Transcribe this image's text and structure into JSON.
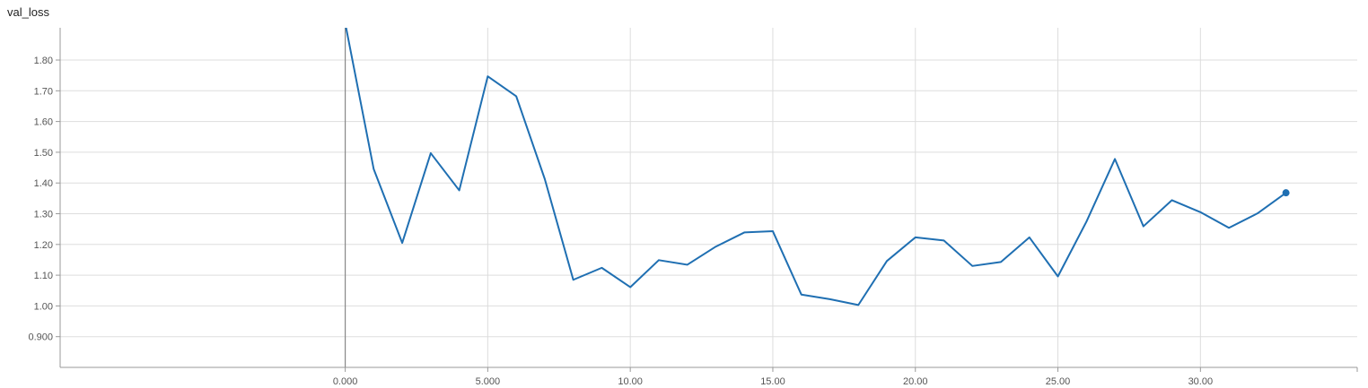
{
  "chart_data": {
    "type": "line",
    "title": "val_loss",
    "xlabel": "",
    "ylabel": "",
    "xlim": [
      -10,
      35.5
    ],
    "ylim": [
      0.8,
      1.905
    ],
    "x_ticks": [
      0,
      5,
      10,
      15,
      20,
      25,
      30
    ],
    "x_tick_labels": [
      "0.000",
      "5.000",
      "10.00",
      "15.00",
      "20.00",
      "25.00",
      "30.00"
    ],
    "y_ticks": [
      0.9,
      1.0,
      1.1,
      1.2,
      1.3,
      1.4,
      1.5,
      1.6,
      1.7,
      1.8
    ],
    "y_tick_labels": [
      "0.900",
      "1.00",
      "1.10",
      "1.20",
      "1.30",
      "1.40",
      "1.50",
      "1.60",
      "1.70",
      "1.80"
    ],
    "grid": true,
    "color": "#1f6fb2",
    "series": [
      {
        "x": [
          0,
          1,
          2,
          3,
          4,
          5,
          6,
          7,
          8,
          9,
          10,
          11,
          12,
          13,
          14,
          15,
          16,
          17,
          18,
          19,
          20,
          21,
          22,
          23,
          24,
          25,
          26,
          27,
          28,
          29,
          30,
          31,
          32,
          33
        ],
        "values": [
          1.92,
          1.445,
          1.205,
          1.497,
          1.376,
          1.747,
          1.682,
          1.413,
          1.085,
          1.124,
          1.061,
          1.149,
          1.134,
          1.193,
          1.239,
          1.243,
          1.037,
          1.022,
          1.003,
          1.146,
          1.223,
          1.213,
          1.13,
          1.143,
          1.223,
          1.096,
          1.274,
          1.478,
          1.259,
          1.344,
          1.305,
          1.254,
          1.301,
          1.368
        ]
      }
    ]
  }
}
